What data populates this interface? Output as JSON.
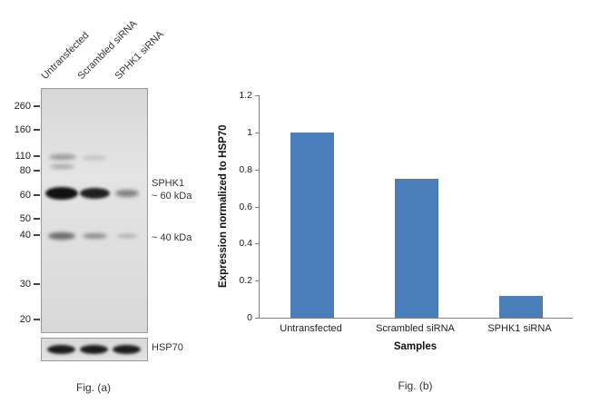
{
  "figure": {
    "fig_a_caption": "Fig. (a)",
    "fig_b_caption": "Fig. (b)"
  },
  "blot": {
    "lane_labels": [
      "Untransfected",
      "Scrambled siRNA",
      "SPHK1 siRNA"
    ],
    "mw_markers": [
      "260",
      "160",
      "110",
      "80",
      "60",
      "50",
      "40",
      "30",
      "20"
    ],
    "annotations": {
      "protein": "SPHK1",
      "band1": "~ 60 kDa",
      "band2": "~ 40 kDa",
      "loading_control": "HSP70"
    }
  },
  "chart_data": {
    "type": "bar",
    "categories": [
      "Untransfected",
      "Scrambled siRNA",
      "SPHK1 siRNA"
    ],
    "values": [
      1.0,
      0.75,
      0.12
    ],
    "title": "",
    "xlabel": "Samples",
    "ylabel": "Expression normalized to HSP70",
    "ylim": [
      0,
      1.2
    ],
    "yticks": [
      0,
      0.2,
      0.4,
      0.6,
      0.8,
      1,
      1.2
    ],
    "bar_color": "#4a7ebb",
    "grid": false,
    "legend": "none"
  }
}
